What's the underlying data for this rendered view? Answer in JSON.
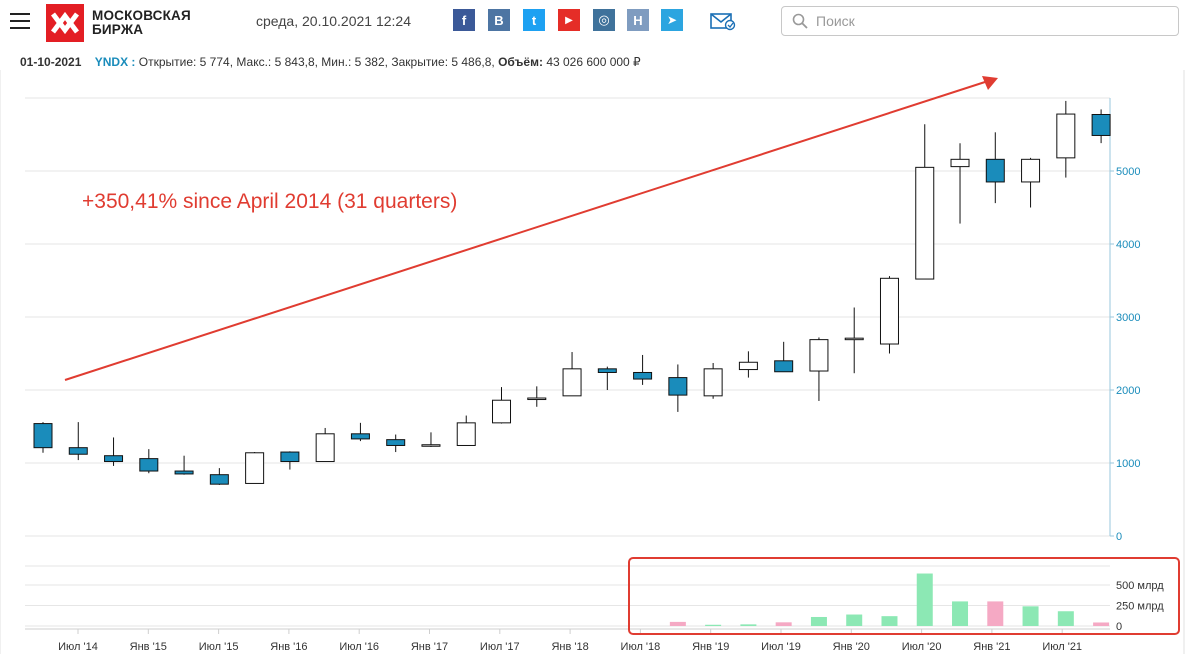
{
  "header": {
    "logo_line1": "МОСКОВСКАЯ",
    "logo_line2": "БИРЖА",
    "datetime": "среда, 20.10.2021 12:24",
    "social_icons": [
      {
        "name": "facebook-icon",
        "glyph": "f",
        "color": "#3b5998"
      },
      {
        "name": "vk-icon",
        "glyph": "B",
        "color": "#4d75a3"
      },
      {
        "name": "twitter-icon",
        "glyph": "t",
        "color": "#1da1f2"
      },
      {
        "name": "youtube-icon",
        "glyph": "▶",
        "color": "#e52d27"
      },
      {
        "name": "instagram-icon",
        "glyph": "◎",
        "color": "#3f729b"
      },
      {
        "name": "news-icon",
        "glyph": "H",
        "color": "#7f9cc0"
      },
      {
        "name": "telegram-icon",
        "glyph": "➤",
        "color": "#2ca5e0"
      }
    ],
    "search_placeholder": "Поиск"
  },
  "info": {
    "date": "01-10-2021",
    "ticker": "YNDX :",
    "open": "Открытие: 5 774,",
    "high": "Макс.: 5 843,8,",
    "low": "Мин.: 5 382,",
    "close": "Закрытие: 5 486,8,",
    "volume_label": "Объём:",
    "volume_value": "43 026 600 000 ₽"
  },
  "annotation": {
    "text": "+350,41% since April 2014 (31 quarters)",
    "color": "#e03c31"
  },
  "chart_data": {
    "type": "candlestick",
    "period": "quarterly",
    "up_color": "#ffffff",
    "down_color": "#1a8cbb",
    "price_axis": {
      "ticks": [
        0,
        1000,
        2000,
        3000,
        4000,
        5000
      ],
      "labels": [
        "0",
        "1000",
        "2000",
        "3000",
        "4000",
        "5000"
      ],
      "ylim": [
        0,
        6000
      ],
      "side": "right"
    },
    "volume_axis": {
      "ticks": [
        0,
        250,
        500
      ],
      "labels": [
        "0",
        "250 млрд",
        "500 млрд"
      ],
      "ylim": [
        0,
        600
      ]
    },
    "x_labels": [
      "Июл '14",
      "Янв '15",
      "Июл '15",
      "Янв '16",
      "Июл '16",
      "Янв '17",
      "Июл '17",
      "Янв '18",
      "Июл '18",
      "Янв '19",
      "Июл '19",
      "Янв '20",
      "Июл '20",
      "Янв '21",
      "Июл '21"
    ],
    "candles": [
      {
        "o": 1540,
        "h": 1560,
        "l": 1140,
        "c": 1210
      },
      {
        "o": 1210,
        "h": 1560,
        "l": 1040,
        "c": 1120
      },
      {
        "o": 1100,
        "h": 1350,
        "l": 960,
        "c": 1020
      },
      {
        "o": 1060,
        "h": 1190,
        "l": 860,
        "c": 890
      },
      {
        "o": 890,
        "h": 1100,
        "l": 840,
        "c": 850
      },
      {
        "o": 840,
        "h": 930,
        "l": 700,
        "c": 710
      },
      {
        "o": 720,
        "h": 1150,
        "l": 720,
        "c": 1140
      },
      {
        "o": 1150,
        "h": 1160,
        "l": 910,
        "c": 1020
      },
      {
        "o": 1020,
        "h": 1480,
        "l": 1020,
        "c": 1400
      },
      {
        "o": 1400,
        "h": 1550,
        "l": 1300,
        "c": 1330
      },
      {
        "o": 1320,
        "h": 1390,
        "l": 1150,
        "c": 1240
      },
      {
        "o": 1240,
        "h": 1420,
        "l": 1220,
        "c": 1250
      },
      {
        "o": 1240,
        "h": 1650,
        "l": 1240,
        "c": 1550
      },
      {
        "o": 1550,
        "h": 2040,
        "l": 1540,
        "c": 1860
      },
      {
        "o": 1880,
        "h": 2050,
        "l": 1770,
        "c": 1890
      },
      {
        "o": 1920,
        "h": 2520,
        "l": 1920,
        "c": 2290
      },
      {
        "o": 2290,
        "h": 2320,
        "l": 2000,
        "c": 2240
      },
      {
        "o": 2240,
        "h": 2480,
        "l": 2070,
        "c": 2150
      },
      {
        "o": 2170,
        "h": 2350,
        "l": 1700,
        "c": 1930
      },
      {
        "o": 1920,
        "h": 2370,
        "l": 1880,
        "c": 2290
      },
      {
        "o": 2280,
        "h": 2530,
        "l": 2170,
        "c": 2380
      },
      {
        "o": 2400,
        "h": 2660,
        "l": 2250,
        "c": 2250
      },
      {
        "o": 2260,
        "h": 2720,
        "l": 1850,
        "c": 2690
      },
      {
        "o": 2700,
        "h": 3130,
        "l": 2230,
        "c": 2710
      },
      {
        "o": 2630,
        "h": 3560,
        "l": 2500,
        "c": 3530
      },
      {
        "o": 3520,
        "h": 5640,
        "l": 3520,
        "c": 5050
      },
      {
        "o": 5060,
        "h": 5380,
        "l": 4280,
        "c": 5160
      },
      {
        "o": 5160,
        "h": 5530,
        "l": 4560,
        "c": 4850
      },
      {
        "o": 4850,
        "h": 5180,
        "l": 4500,
        "c": 5160
      },
      {
        "o": 5180,
        "h": 5960,
        "l": 4910,
        "c": 5780
      },
      {
        "o": 5774,
        "h": 5843.8,
        "l": 5382,
        "c": 5486.8
      }
    ],
    "volumes_bn": [
      0,
      0,
      0,
      0,
      0,
      0,
      0,
      0,
      0,
      0,
      0,
      0,
      0,
      0,
      0,
      0,
      0,
      0,
      50,
      15,
      20,
      45,
      110,
      140,
      120,
      640,
      300,
      300,
      240,
      180,
      43
    ]
  }
}
